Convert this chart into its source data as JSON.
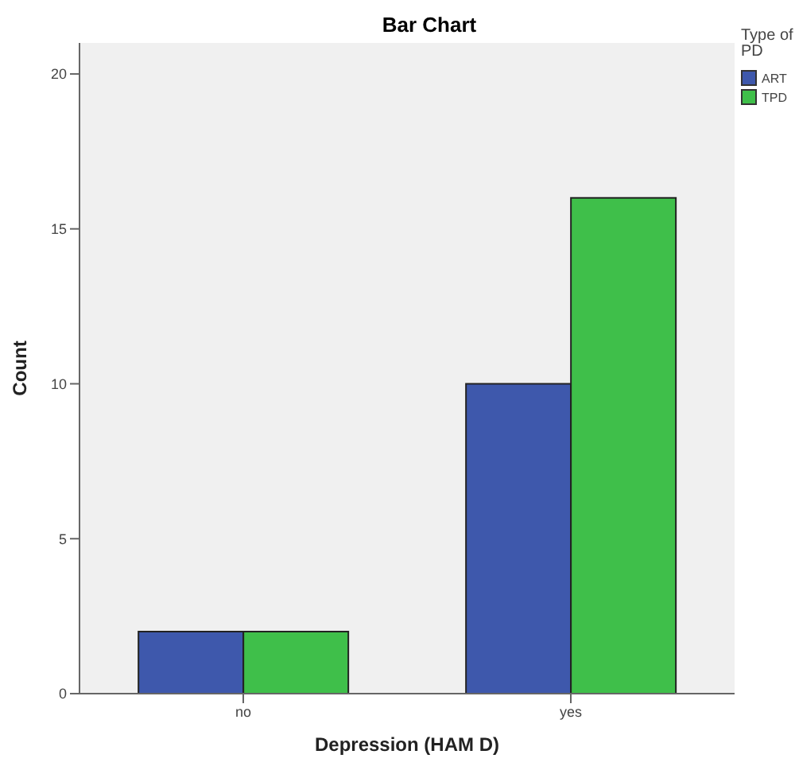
{
  "chart_data": {
    "type": "bar",
    "title": "Bar Chart",
    "xlabel": "Depression (HAM D)",
    "ylabel": "Count",
    "legend_title": "Type of PD",
    "categories": [
      "no",
      "yes"
    ],
    "series": [
      {
        "name": "ART",
        "color": "#3e58ac",
        "values": [
          2,
          10
        ]
      },
      {
        "name": "TPD",
        "color": "#3fbf4a",
        "values": [
          2,
          16
        ]
      }
    ],
    "ylim": [
      0,
      21
    ],
    "yticks": [
      0,
      5,
      10,
      15,
      20
    ],
    "grid": false,
    "legend": "top right"
  }
}
